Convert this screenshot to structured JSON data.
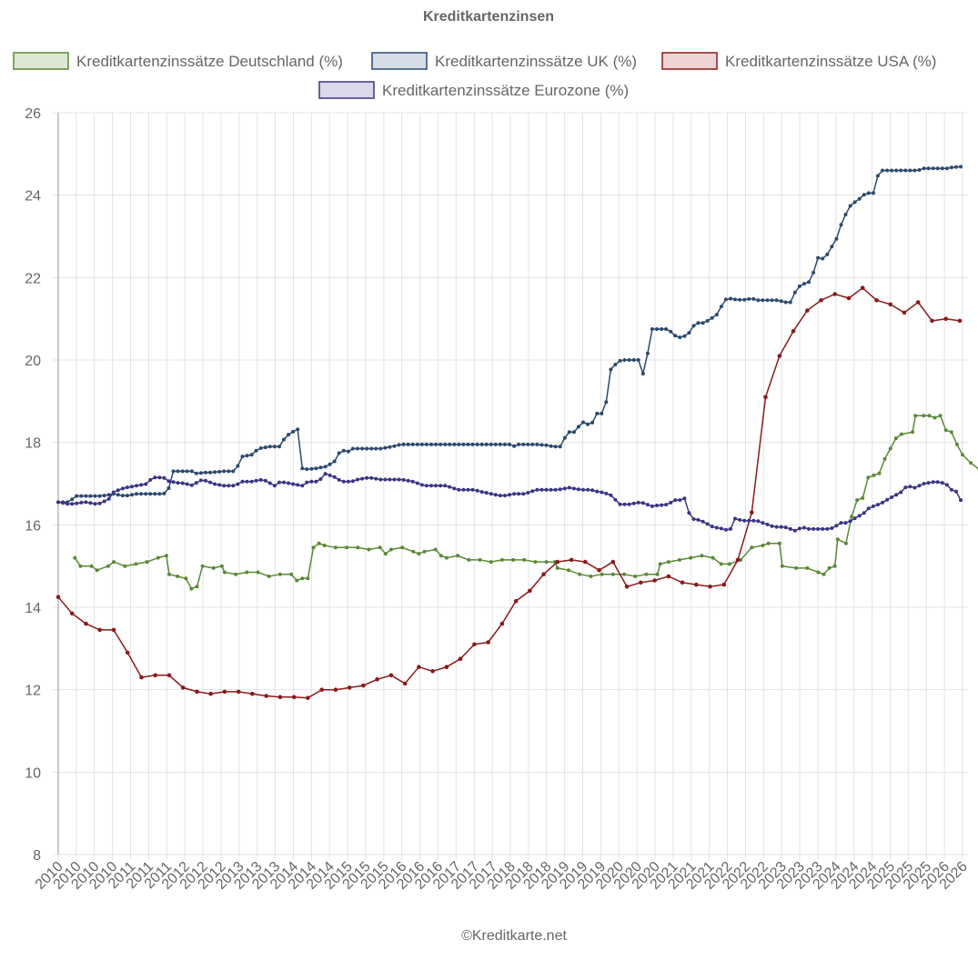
{
  "chart_data": {
    "type": "line",
    "title": "Kreditkartenzinsen",
    "credit": "©Kreditkarte.net",
    "ylim": [
      8,
      26
    ],
    "yticks": [
      8,
      10,
      12,
      14,
      16,
      18,
      20,
      22,
      24,
      26
    ],
    "xrange": [
      2010.0,
      2026.3
    ],
    "xtick_labels": [
      "2010",
      "2010",
      "2010",
      "2010",
      "2011",
      "2011",
      "2011",
      "2012",
      "2012",
      "2012",
      "2013",
      "2013",
      "2013",
      "2014",
      "2014",
      "2014",
      "2015",
      "2015",
      "2015",
      "2016",
      "2016",
      "2016",
      "2017",
      "2017",
      "2017",
      "2018",
      "2018",
      "2018",
      "2019",
      "2019",
      "2019",
      "2020",
      "2020",
      "2020",
      "2021",
      "2021",
      "2021",
      "2022",
      "2022",
      "2022",
      "2023",
      "2023",
      "2023",
      "2024",
      "2024",
      "2024",
      "2025",
      "2025",
      "2025",
      "2026",
      "2026"
    ],
    "grid": true,
    "legend": "top",
    "series": [
      {
        "name": "Kreditkartenzinssätze Deutschland (%)",
        "color": "#5a8a35",
        "fill": "#dde8d2",
        "points": [
          [
            2010.3,
            15.2
          ],
          [
            2010.4,
            15.0
          ],
          [
            2010.6,
            15.0
          ],
          [
            2010.7,
            14.9
          ],
          [
            2010.9,
            15.0
          ],
          [
            2011.0,
            15.1
          ],
          [
            2011.2,
            15.0
          ],
          [
            2011.4,
            15.05
          ],
          [
            2011.6,
            15.1
          ],
          [
            2011.8,
            15.2
          ],
          [
            2011.95,
            15.25
          ],
          [
            2012.0,
            14.8
          ],
          [
            2012.15,
            14.75
          ],
          [
            2012.3,
            14.7
          ],
          [
            2012.4,
            14.45
          ],
          [
            2012.5,
            14.5
          ],
          [
            2012.6,
            15.0
          ],
          [
            2012.8,
            14.95
          ],
          [
            2012.95,
            15.0
          ],
          [
            2013.0,
            14.85
          ],
          [
            2013.2,
            14.8
          ],
          [
            2013.4,
            14.85
          ],
          [
            2013.6,
            14.85
          ],
          [
            2013.8,
            14.75
          ],
          [
            2014.0,
            14.8
          ],
          [
            2014.2,
            14.8
          ],
          [
            2014.3,
            14.65
          ],
          [
            2014.4,
            14.7
          ],
          [
            2014.5,
            14.7
          ],
          [
            2014.6,
            15.45
          ],
          [
            2014.7,
            15.55
          ],
          [
            2014.8,
            15.5
          ],
          [
            2015.0,
            15.45
          ],
          [
            2015.2,
            15.45
          ],
          [
            2015.4,
            15.45
          ],
          [
            2015.6,
            15.4
          ],
          [
            2015.8,
            15.45
          ],
          [
            2015.9,
            15.3
          ],
          [
            2016.0,
            15.4
          ],
          [
            2016.2,
            15.45
          ],
          [
            2016.4,
            15.35
          ],
          [
            2016.5,
            15.3
          ],
          [
            2016.6,
            15.35
          ],
          [
            2016.8,
            15.4
          ],
          [
            2016.9,
            15.25
          ],
          [
            2017.0,
            15.2
          ],
          [
            2017.2,
            15.25
          ],
          [
            2017.4,
            15.15
          ],
          [
            2017.6,
            15.15
          ],
          [
            2017.8,
            15.1
          ],
          [
            2018.0,
            15.15
          ],
          [
            2018.2,
            15.15
          ],
          [
            2018.4,
            15.15
          ],
          [
            2018.6,
            15.1
          ],
          [
            2018.8,
            15.1
          ],
          [
            2018.95,
            15.1
          ],
          [
            2019.0,
            14.95
          ],
          [
            2019.2,
            14.9
          ],
          [
            2019.4,
            14.8
          ],
          [
            2019.6,
            14.75
          ],
          [
            2019.8,
            14.8
          ],
          [
            2020.0,
            14.8
          ],
          [
            2020.2,
            14.8
          ],
          [
            2020.4,
            14.75
          ],
          [
            2020.6,
            14.8
          ],
          [
            2020.8,
            14.8
          ],
          [
            2020.85,
            15.05
          ],
          [
            2021.0,
            15.1
          ],
          [
            2021.2,
            15.15
          ],
          [
            2021.4,
            15.2
          ],
          [
            2021.6,
            15.25
          ],
          [
            2021.8,
            15.2
          ],
          [
            2021.95,
            15.05
          ],
          [
            2022.1,
            15.05
          ],
          [
            2022.3,
            15.15
          ],
          [
            2022.5,
            15.45
          ],
          [
            2022.7,
            15.5
          ],
          [
            2022.8,
            15.55
          ],
          [
            2023.0,
            15.55
          ],
          [
            2023.05,
            15.0
          ],
          [
            2023.3,
            14.95
          ],
          [
            2023.5,
            14.95
          ],
          [
            2023.7,
            14.85
          ],
          [
            2023.8,
            14.8
          ],
          [
            2023.9,
            14.95
          ],
          [
            2024.0,
            15.0
          ],
          [
            2024.05,
            15.65
          ],
          [
            2024.2,
            15.55
          ],
          [
            2024.3,
            16.2
          ],
          [
            2024.4,
            16.6
          ],
          [
            2024.5,
            16.65
          ],
          [
            2024.6,
            17.15
          ],
          [
            2024.7,
            17.2
          ],
          [
            2024.8,
            17.25
          ],
          [
            2024.9,
            17.6
          ],
          [
            2025.0,
            17.85
          ],
          [
            2025.1,
            18.1
          ],
          [
            2025.2,
            18.2
          ],
          [
            2025.4,
            18.25
          ],
          [
            2025.45,
            18.65
          ],
          [
            2025.6,
            18.65
          ],
          [
            2025.7,
            18.65
          ],
          [
            2025.8,
            18.6
          ],
          [
            2025.9,
            18.65
          ],
          [
            2026.0,
            18.3
          ],
          [
            2026.1,
            18.25
          ],
          [
            2026.2,
            17.95
          ],
          [
            2026.3,
            17.7
          ],
          [
            2026.45,
            17.5
          ],
          [
            2026.6,
            17.35
          ]
        ]
      },
      {
        "name": "Kreditkartenzinssätze UK (%)",
        "color": "#2c4a6e",
        "fill": "#d5dde6",
        "points": []
      },
      {
        "name": "Kreditkartenzinssätze USA (%)",
        "color": "#8b1a1a",
        "fill": "#eed5d5",
        "points": []
      },
      {
        "name": "Kreditkartenzinssätze Eurozone (%)",
        "color": "#3a3585",
        "fill": "#dad8ea",
        "points": []
      }
    ]
  }
}
